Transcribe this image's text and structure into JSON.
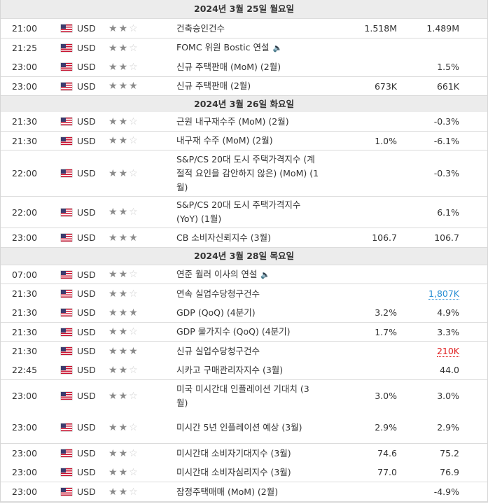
{
  "sections": [
    {
      "date": "2024년 3월 25일 월요일",
      "events": [
        {
          "time": "21:00",
          "currency": "USD",
          "stars": 2,
          "event": "건축승인건수",
          "speech": false,
          "forecast": "1.518M",
          "previous": "1.489M",
          "prev_color": ""
        },
        {
          "time": "21:25",
          "currency": "USD",
          "stars": 2,
          "event": "FOMC 위원 Bostic 연설",
          "speech": true,
          "forecast": "",
          "previous": "",
          "prev_color": ""
        },
        {
          "time": "23:00",
          "currency": "USD",
          "stars": 2,
          "event": "신규 주택판매 (MoM) (2월)",
          "speech": false,
          "forecast": "",
          "previous": "1.5%",
          "prev_color": ""
        },
        {
          "time": "23:00",
          "currency": "USD",
          "stars": 3,
          "event": "신규 주택판매 (2월)",
          "speech": false,
          "forecast": "673K",
          "previous": "661K",
          "prev_color": ""
        }
      ]
    },
    {
      "date": "2024년 3월 26일 화요일",
      "events": [
        {
          "time": "21:30",
          "currency": "USD",
          "stars": 2,
          "event": "근원 내구재수주 (MoM) (2월)",
          "speech": false,
          "forecast": "",
          "previous": "-0.3%",
          "prev_color": ""
        },
        {
          "time": "21:30",
          "currency": "USD",
          "stars": 2,
          "event": "내구재 수주 (MoM) (2월)",
          "speech": false,
          "forecast": "1.0%",
          "previous": "-6.1%",
          "prev_color": ""
        },
        {
          "time": "22:00",
          "currency": "USD",
          "stars": 2,
          "event": "S&P/CS 20대 도시 주택가격지수 (계절적 요인을 감안하지 않은) (MoM) (1월)",
          "speech": false,
          "forecast": "",
          "previous": "-0.3%",
          "prev_color": ""
        },
        {
          "time": "22:00",
          "currency": "USD",
          "stars": 2,
          "event": "S&P/CS 20대 도시 주택가격지수 (YoY) (1월)",
          "speech": false,
          "forecast": "",
          "previous": "6.1%",
          "prev_color": ""
        },
        {
          "time": "23:00",
          "currency": "USD",
          "stars": 3,
          "event": "CB 소비자신뢰지수 (3월)",
          "speech": false,
          "forecast": "106.7",
          "previous": "106.7",
          "prev_color": ""
        }
      ]
    },
    {
      "date": "2024년 3월 28일 목요일",
      "events": [
        {
          "time": "07:00",
          "currency": "USD",
          "stars": 2,
          "event": "연준 월러 이사의 연설",
          "speech": true,
          "forecast": "",
          "previous": "",
          "prev_color": ""
        },
        {
          "time": "21:30",
          "currency": "USD",
          "stars": 2,
          "event": "연속 실업수당청구건수",
          "speech": false,
          "forecast": "",
          "previous": "1,807K",
          "prev_color": "blue"
        },
        {
          "time": "21:30",
          "currency": "USD",
          "stars": 3,
          "event": "GDP (QoQ) (4분기)",
          "speech": false,
          "forecast": "3.2%",
          "previous": "4.9%",
          "prev_color": ""
        },
        {
          "time": "21:30",
          "currency": "USD",
          "stars": 2,
          "event": "GDP 물가지수 (QoQ) (4분기)",
          "speech": false,
          "forecast": "1.7%",
          "previous": "3.3%",
          "prev_color": ""
        },
        {
          "time": "21:30",
          "currency": "USD",
          "stars": 3,
          "event": "신규 실업수당청구건수",
          "speech": false,
          "forecast": "",
          "previous": "210K",
          "prev_color": "red"
        },
        {
          "time": "22:45",
          "currency": "USD",
          "stars": 2,
          "event": "시카고 구매관리자지수 (3월)",
          "speech": false,
          "forecast": "",
          "previous": "44.0",
          "prev_color": ""
        },
        {
          "time": "23:00",
          "currency": "USD",
          "stars": 2,
          "event": "미국 미시간대 인플레이션 기대치 (3월)",
          "speech": false,
          "forecast": "3.0%",
          "previous": "3.0%",
          "prev_color": ""
        },
        {
          "time": "23:00",
          "currency": "USD",
          "stars": 2,
          "event": "미시간 5년 인플레이션 예상 (3월)",
          "speech": false,
          "forecast": "2.9%",
          "previous": "2.9%",
          "prev_color": ""
        },
        {
          "time": "23:00",
          "currency": "USD",
          "stars": 2,
          "event": "미시간대 소비자기대지수 (3월)",
          "speech": false,
          "forecast": "74.6",
          "previous": "75.2",
          "prev_color": ""
        },
        {
          "time": "23:00",
          "currency": "USD",
          "stars": 2,
          "event": "미시간대 소비자심리지수 (3월)",
          "speech": false,
          "forecast": "77.0",
          "previous": "76.9",
          "prev_color": ""
        },
        {
          "time": "23:00",
          "currency": "USD",
          "stars": 2,
          "event": "잠정주택매매 (MoM) (2월)",
          "speech": false,
          "forecast": "",
          "previous": "-4.9%",
          "prev_color": ""
        }
      ]
    }
  ],
  "icons": {
    "flag": "us-flag-icon",
    "star": "star-icon",
    "speaker": "speaker-icon"
  },
  "colors": {
    "header_bg": "#ececec",
    "border": "#dcdcdc",
    "blue": "#2a8fd4",
    "red": "#e02020"
  }
}
